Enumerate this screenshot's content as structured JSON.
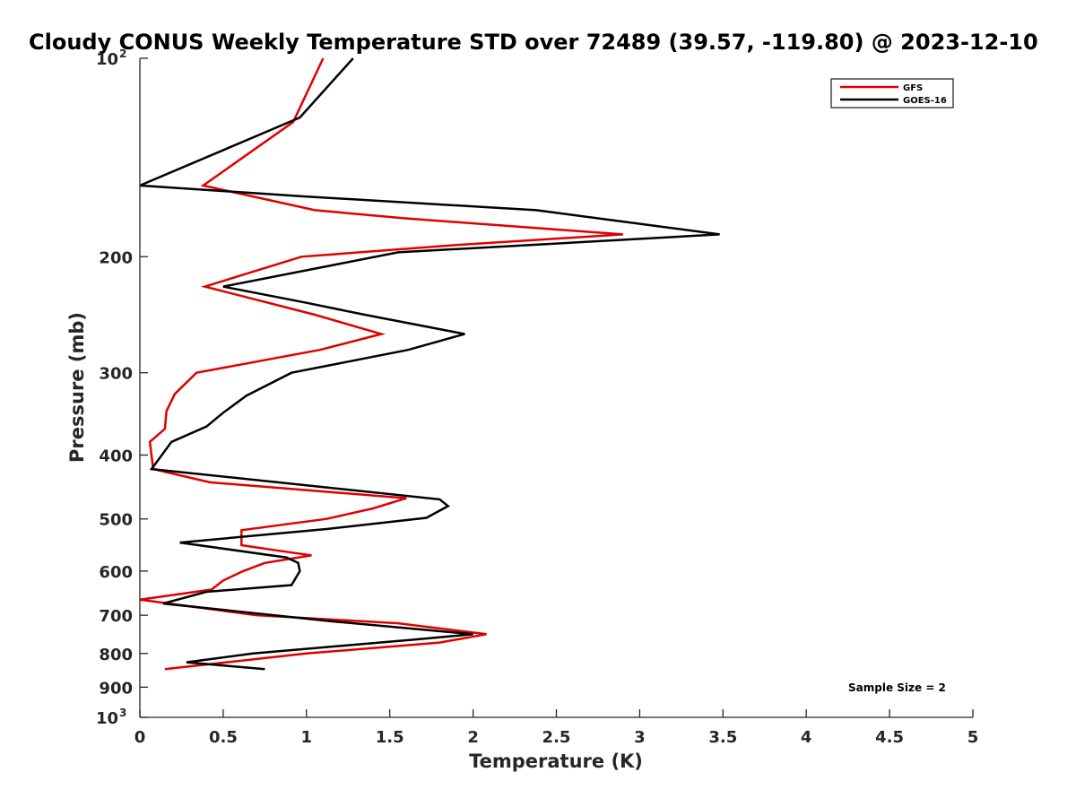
{
  "chart_data": {
    "type": "line",
    "title": "Cloudy CONUS Weekly Temperature STD over 72489 (39.57, -119.80) @ 2023-12-10",
    "xlabel": "Temperature (K)",
    "ylabel": "Pressure (mb)",
    "xlim": [
      0,
      5
    ],
    "ylim": [
      100,
      1000
    ],
    "y_scale": "log",
    "y_reversed": true,
    "grid": false,
    "legend_position": "top-right",
    "x_ticks": [
      "0",
      "0.5",
      "1",
      "1.5",
      "2",
      "2.5",
      "3",
      "3.5",
      "4",
      "4.5",
      "5"
    ],
    "y_ticks": [
      {
        "value": 100,
        "base": "10",
        "exp": "2"
      },
      {
        "value": 200,
        "label": "200"
      },
      {
        "value": 300,
        "label": "300"
      },
      {
        "value": 400,
        "label": "400"
      },
      {
        "value": 500,
        "label": "500"
      },
      {
        "value": 600,
        "label": "600"
      },
      {
        "value": 700,
        "label": "700"
      },
      {
        "value": 800,
        "label": "800"
      },
      {
        "value": 900,
        "label": "900"
      },
      {
        "value": 1000,
        "base": "10",
        "exp": "3"
      }
    ],
    "annotation": "Sample Size = 2",
    "series": [
      {
        "name": "GFS",
        "color": "#e00000",
        "points": [
          {
            "x": 1.1,
            "y": 100
          },
          {
            "x": 0.92,
            "y": 125
          },
          {
            "x": 0.38,
            "y": 156
          },
          {
            "x": 1.05,
            "y": 170
          },
          {
            "x": 1.6,
            "y": 175
          },
          {
            "x": 2.9,
            "y": 185
          },
          {
            "x": 1.9,
            "y": 192
          },
          {
            "x": 0.97,
            "y": 200
          },
          {
            "x": 0.39,
            "y": 222
          },
          {
            "x": 1.05,
            "y": 245
          },
          {
            "x": 1.45,
            "y": 262
          },
          {
            "x": 1.08,
            "y": 277
          },
          {
            "x": 0.34,
            "y": 300
          },
          {
            "x": 0.21,
            "y": 323
          },
          {
            "x": 0.16,
            "y": 343
          },
          {
            "x": 0.15,
            "y": 365
          },
          {
            "x": 0.06,
            "y": 382
          },
          {
            "x": 0.08,
            "y": 420
          },
          {
            "x": 0.42,
            "y": 440
          },
          {
            "x": 1.6,
            "y": 465
          },
          {
            "x": 1.4,
            "y": 482
          },
          {
            "x": 1.12,
            "y": 500
          },
          {
            "x": 0.61,
            "y": 520
          },
          {
            "x": 0.61,
            "y": 548
          },
          {
            "x": 0.82,
            "y": 558
          },
          {
            "x": 1.03,
            "y": 568
          },
          {
            "x": 0.75,
            "y": 583
          },
          {
            "x": 0.62,
            "y": 600
          },
          {
            "x": 0.5,
            "y": 620
          },
          {
            "x": 0.43,
            "y": 640
          },
          {
            "x": 0.0,
            "y": 663
          },
          {
            "x": 0.7,
            "y": 700
          },
          {
            "x": 1.55,
            "y": 720
          },
          {
            "x": 2.08,
            "y": 748
          },
          {
            "x": 1.8,
            "y": 770
          },
          {
            "x": 1.0,
            "y": 800
          },
          {
            "x": 0.15,
            "y": 845
          }
        ]
      },
      {
        "name": "GOES-16",
        "color": "#000000",
        "points": [
          {
            "x": 1.28,
            "y": 100
          },
          {
            "x": 0.96,
            "y": 123
          },
          {
            "x": 0.0,
            "y": 156
          },
          {
            "x": 0.98,
            "y": 162
          },
          {
            "x": 2.38,
            "y": 170
          },
          {
            "x": 3.48,
            "y": 185
          },
          {
            "x": 1.55,
            "y": 197
          },
          {
            "x": 0.5,
            "y": 222
          },
          {
            "x": 1.0,
            "y": 235
          },
          {
            "x": 1.35,
            "y": 245
          },
          {
            "x": 1.95,
            "y": 262
          },
          {
            "x": 1.61,
            "y": 277
          },
          {
            "x": 0.91,
            "y": 300
          },
          {
            "x": 0.64,
            "y": 325
          },
          {
            "x": 0.5,
            "y": 345
          },
          {
            "x": 0.4,
            "y": 362
          },
          {
            "x": 0.19,
            "y": 382
          },
          {
            "x": 0.07,
            "y": 420
          },
          {
            "x": 1.8,
            "y": 467
          },
          {
            "x": 1.85,
            "y": 478
          },
          {
            "x": 1.72,
            "y": 498
          },
          {
            "x": 1.12,
            "y": 518
          },
          {
            "x": 0.24,
            "y": 543
          },
          {
            "x": 0.88,
            "y": 572
          },
          {
            "x": 0.95,
            "y": 583
          },
          {
            "x": 0.96,
            "y": 600
          },
          {
            "x": 0.91,
            "y": 630
          },
          {
            "x": 0.4,
            "y": 645
          },
          {
            "x": 0.14,
            "y": 672
          },
          {
            "x": 1.15,
            "y": 715
          },
          {
            "x": 2.0,
            "y": 748
          },
          {
            "x": 1.65,
            "y": 762
          },
          {
            "x": 0.68,
            "y": 800
          },
          {
            "x": 0.28,
            "y": 825
          },
          {
            "x": 0.75,
            "y": 845
          }
        ]
      }
    ]
  }
}
